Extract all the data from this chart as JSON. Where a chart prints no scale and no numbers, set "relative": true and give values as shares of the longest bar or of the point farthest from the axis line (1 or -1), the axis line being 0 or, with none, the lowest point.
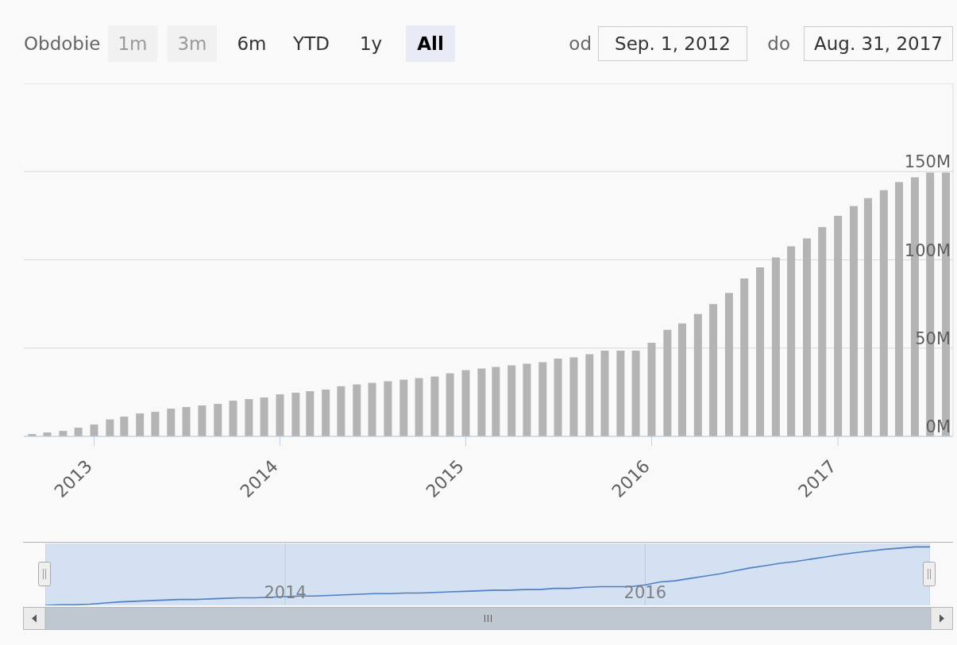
{
  "chart_data": [
    {
      "type": "bar",
      "x": [
        "2012-09",
        "2012-10",
        "2012-11",
        "2012-12",
        "2013-01",
        "2013-02",
        "2013-03",
        "2013-04",
        "2013-05",
        "2013-06",
        "2013-07",
        "2013-08",
        "2013-09",
        "2013-10",
        "2013-11",
        "2013-12",
        "2014-01",
        "2014-02",
        "2014-03",
        "2014-04",
        "2014-05",
        "2014-06",
        "2014-07",
        "2014-08",
        "2014-09",
        "2014-10",
        "2014-11",
        "2014-12",
        "2015-01",
        "2015-02",
        "2015-03",
        "2015-04",
        "2015-05",
        "2015-06",
        "2015-07",
        "2015-08",
        "2015-09",
        "2015-10",
        "2015-11",
        "2015-12",
        "2016-01",
        "2016-02",
        "2016-03",
        "2016-04",
        "2016-05",
        "2016-06",
        "2016-07",
        "2016-08",
        "2016-09",
        "2016-10",
        "2016-11",
        "2016-12",
        "2017-01",
        "2017-02",
        "2017-03",
        "2017-04",
        "2017-05",
        "2017-06",
        "2017-07",
        "2017-08"
      ],
      "values": [
        1.3,
        2.2,
        3.1,
        4.9,
        6.7,
        9.6,
        11.2,
        13.0,
        13.9,
        15.7,
        16.6,
        17.5,
        18.4,
        20.2,
        21.1,
        22.0,
        23.8,
        24.7,
        25.6,
        26.5,
        28.4,
        29.4,
        30.3,
        31.2,
        32.1,
        33.0,
        33.9,
        35.7,
        37.5,
        38.4,
        39.3,
        40.2,
        41.1,
        42.0,
        44.0,
        44.7,
        46.5,
        48.5,
        48.5,
        48.5,
        53.0,
        60.3,
        63.9,
        69.3,
        74.9,
        81.2,
        89.4,
        95.7,
        101.3,
        107.6,
        112.1,
        118.5,
        124.9,
        130.4,
        134.9,
        139.4,
        144.0,
        146.7,
        149.4,
        149.4
      ],
      "color": "#b4b4b4",
      "xlim": [
        "2012-08-16",
        "2017-08-15"
      ],
      "xticks": [
        "2013",
        "2014",
        "2015",
        "2016",
        "2017"
      ],
      "ylim": [
        0,
        200
      ],
      "yticks": [
        {
          "value": 0,
          "label": "0M"
        },
        {
          "value": 50,
          "label": "50M"
        },
        {
          "value": 100,
          "label": "100M"
        },
        {
          "value": 150,
          "label": "150M"
        },
        {
          "value": 200,
          "label": null
        }
      ],
      "grid": "y",
      "annotations": [
        "Obdobie",
        "1m",
        "3m",
        "6m",
        "YTD",
        "1y",
        "All",
        "od",
        "Sep. 1, 2012",
        "do",
        "Aug. 31, 2017"
      ]
    },
    {
      "type": "line",
      "x": [
        "2012-09",
        "2012-10",
        "2012-11",
        "2012-12",
        "2013-01",
        "2013-02",
        "2013-03",
        "2013-04",
        "2013-05",
        "2013-06",
        "2013-07",
        "2013-08",
        "2013-09",
        "2013-10",
        "2013-11",
        "2013-12",
        "2014-01",
        "2014-02",
        "2014-03",
        "2014-04",
        "2014-05",
        "2014-06",
        "2014-07",
        "2014-08",
        "2014-09",
        "2014-10",
        "2014-11",
        "2014-12",
        "2015-01",
        "2015-02",
        "2015-03",
        "2015-04",
        "2015-05",
        "2015-06",
        "2015-07",
        "2015-08",
        "2015-09",
        "2015-10",
        "2015-11",
        "2015-12",
        "2016-01",
        "2016-02",
        "2016-03",
        "2016-04",
        "2016-05",
        "2016-06",
        "2016-07",
        "2016-08",
        "2016-09",
        "2016-10",
        "2016-11",
        "2016-12",
        "2017-01",
        "2017-02",
        "2017-03",
        "2017-04",
        "2017-05",
        "2017-06",
        "2017-07",
        "2017-08"
      ],
      "values": [
        0,
        0.01,
        0.01,
        0.02,
        0.04,
        0.06,
        0.07,
        0.08,
        0.09,
        0.1,
        0.1,
        0.11,
        0.12,
        0.13,
        0.13,
        0.14,
        0.15,
        0.16,
        0.16,
        0.17,
        0.18,
        0.19,
        0.2,
        0.2,
        0.21,
        0.21,
        0.22,
        0.23,
        0.24,
        0.25,
        0.26,
        0.26,
        0.27,
        0.27,
        0.29,
        0.29,
        0.31,
        0.32,
        0.32,
        0.32,
        0.35,
        0.4,
        0.42,
        0.46,
        0.5,
        0.54,
        0.59,
        0.64,
        0.68,
        0.72,
        0.75,
        0.79,
        0.83,
        0.87,
        0.9,
        0.93,
        0.96,
        0.98,
        1,
        1
      ],
      "color": "#4f7fc4",
      "relative": true,
      "xlim": [
        "2012-09",
        "2017-08"
      ],
      "xticks": [
        "2014",
        "2016"
      ],
      "grid": "x",
      "tick_labels": "x",
      "marker": "none",
      "line_style": "solid"
    }
  ]
}
